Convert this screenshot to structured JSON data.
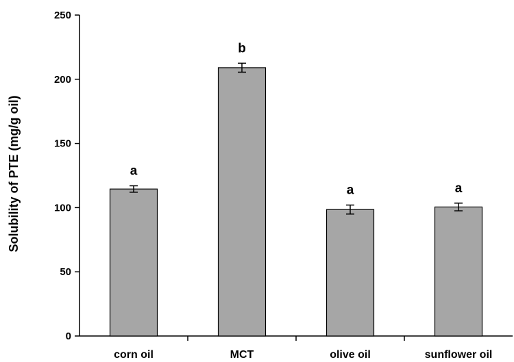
{
  "chart_data": {
    "type": "bar",
    "categories": [
      "corn oil",
      "MCT",
      "olive oil",
      "sunflower oil"
    ],
    "values": [
      114.5,
      209,
      98.5,
      100.5
    ],
    "errors": [
      2.5,
      3.5,
      3.5,
      3
    ],
    "significance": [
      "a",
      "b",
      "a",
      "a"
    ],
    "title": "",
    "xlabel": "",
    "ylabel": "Solubility of PTE (mg/g oil)",
    "ylim": [
      0,
      250
    ],
    "yticks": [
      0,
      50,
      100,
      150,
      200,
      250
    ],
    "grid": false,
    "colors": {
      "bar_fill": "#a6a6a6",
      "bar_stroke": "#000000",
      "axis": "#000000"
    }
  }
}
